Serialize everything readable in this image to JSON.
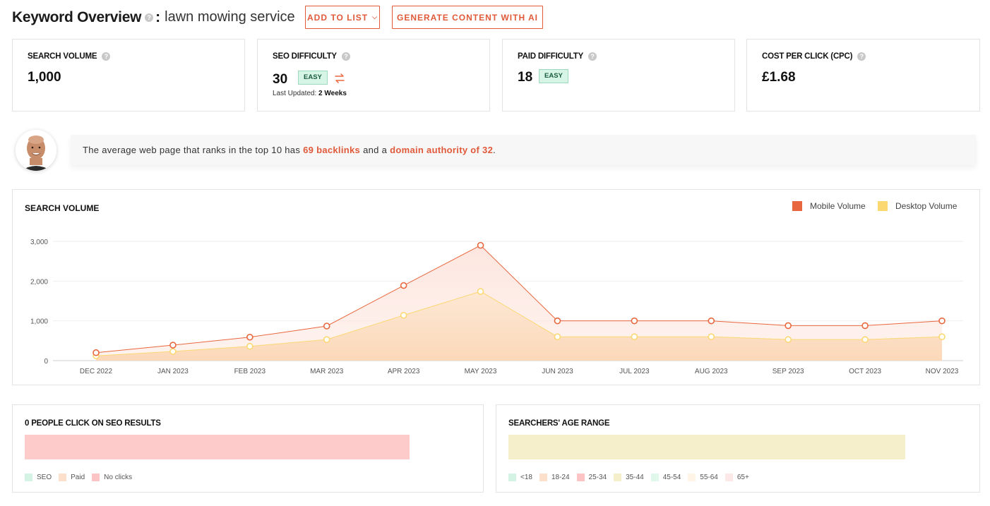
{
  "header": {
    "title": "Keyword Overview",
    "colon": ":",
    "keyword": "lawn mowing service",
    "add_to_list": "ADD TO LIST",
    "generate": "GENERATE CONTENT WITH AI"
  },
  "metrics": {
    "search_volume": {
      "label": "SEARCH VOLUME",
      "value": "1,000"
    },
    "seo_difficulty": {
      "label": "SEO DIFFICULTY",
      "value": "30",
      "badge": "EASY",
      "last_updated_label": "Last Updated:",
      "last_updated_value": "2 Weeks"
    },
    "paid_difficulty": {
      "label": "PAID DIFFICULTY",
      "value": "18",
      "badge": "EASY"
    },
    "cpc": {
      "label": "COST PER CLICK (CPC)",
      "value": "£1.68"
    }
  },
  "banner": {
    "prefix": "The average web page that ranks in the top 10 has",
    "backlinks": "69 backlinks",
    "middle": "and a",
    "authority": "domain authority of 32",
    "suffix": "."
  },
  "chart": {
    "title": "SEARCH VOLUME",
    "legend_mobile": "Mobile Volume",
    "legend_desktop": "Desktop Volume"
  },
  "chart_data": {
    "type": "area",
    "categories": [
      "DEC 2022",
      "JAN 2023",
      "FEB 2023",
      "MAR 2023",
      "APR 2023",
      "MAY 2023",
      "JUN 2023",
      "JUL 2023",
      "AUG 2023",
      "SEP 2023",
      "OCT 2023",
      "NOV 2023"
    ],
    "series": [
      {
        "name": "Mobile Volume",
        "color": "#e8673f",
        "values": [
          200,
          390,
          590,
          870,
          1890,
          2900,
          1000,
          1000,
          1000,
          880,
          880,
          1000
        ]
      },
      {
        "name": "Desktop Volume",
        "color": "#fcd873",
        "values": [
          120,
          230,
          360,
          530,
          1140,
          1740,
          600,
          600,
          600,
          530,
          530,
          600
        ]
      }
    ],
    "yticks": [
      "0",
      "1,000",
      "2,000",
      "3,000"
    ],
    "ylim": [
      0,
      3000
    ],
    "grid": true,
    "legend": "top-right"
  },
  "seo_clicks": {
    "title": "0 PEOPLE CLICK ON SEO RESULTS",
    "bar_color": "#fccbca",
    "legend": [
      {
        "label": "SEO",
        "color": "#d4f3e4"
      },
      {
        "label": "Paid",
        "color": "#fde0cc"
      },
      {
        "label": "No clicks",
        "color": "#fcc4c4"
      }
    ]
  },
  "age_range": {
    "title": "SEARCHERS' AGE RANGE",
    "bar_color": "#f6efcc",
    "legend": [
      {
        "label": "<18",
        "color": "#d4f3e4"
      },
      {
        "label": "18-24",
        "color": "#fde0cc"
      },
      {
        "label": "25-34",
        "color": "#fcc4c4"
      },
      {
        "label": "35-44",
        "color": "#f6efcc"
      },
      {
        "label": "45-54",
        "color": "#e0f7ec"
      },
      {
        "label": "55-64",
        "color": "#fff4e6"
      },
      {
        "label": "65+",
        "color": "#fde8e8"
      }
    ]
  }
}
